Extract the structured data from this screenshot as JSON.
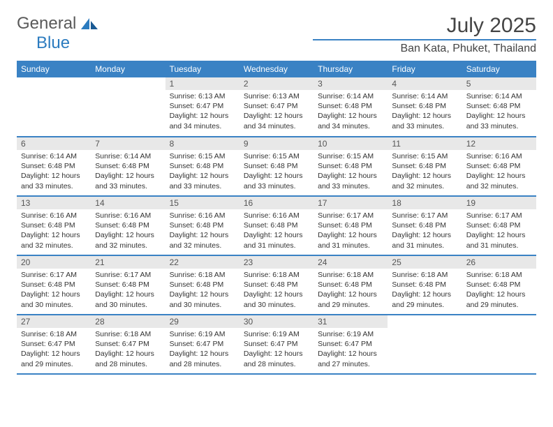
{
  "logo": {
    "part1": "General",
    "part2": "Blue"
  },
  "title": "July 2025",
  "location": "Ban Kata, Phuket, Thailand",
  "colors": {
    "headerBlue": "#3a82c4",
    "dayNumBg": "#e8e8e8",
    "textGray": "#5a5a5a"
  },
  "weekdays": [
    "Sunday",
    "Monday",
    "Tuesday",
    "Wednesday",
    "Thursday",
    "Friday",
    "Saturday"
  ],
  "firstWeekday": 2,
  "daysInMonth": 31,
  "days": {
    "1": {
      "sunrise": "6:13 AM",
      "sunset": "6:47 PM",
      "daylight": "12 hours and 34 minutes."
    },
    "2": {
      "sunrise": "6:13 AM",
      "sunset": "6:47 PM",
      "daylight": "12 hours and 34 minutes."
    },
    "3": {
      "sunrise": "6:14 AM",
      "sunset": "6:48 PM",
      "daylight": "12 hours and 34 minutes."
    },
    "4": {
      "sunrise": "6:14 AM",
      "sunset": "6:48 PM",
      "daylight": "12 hours and 33 minutes."
    },
    "5": {
      "sunrise": "6:14 AM",
      "sunset": "6:48 PM",
      "daylight": "12 hours and 33 minutes."
    },
    "6": {
      "sunrise": "6:14 AM",
      "sunset": "6:48 PM",
      "daylight": "12 hours and 33 minutes."
    },
    "7": {
      "sunrise": "6:14 AM",
      "sunset": "6:48 PM",
      "daylight": "12 hours and 33 minutes."
    },
    "8": {
      "sunrise": "6:15 AM",
      "sunset": "6:48 PM",
      "daylight": "12 hours and 33 minutes."
    },
    "9": {
      "sunrise": "6:15 AM",
      "sunset": "6:48 PM",
      "daylight": "12 hours and 33 minutes."
    },
    "10": {
      "sunrise": "6:15 AM",
      "sunset": "6:48 PM",
      "daylight": "12 hours and 33 minutes."
    },
    "11": {
      "sunrise": "6:15 AM",
      "sunset": "6:48 PM",
      "daylight": "12 hours and 32 minutes."
    },
    "12": {
      "sunrise": "6:16 AM",
      "sunset": "6:48 PM",
      "daylight": "12 hours and 32 minutes."
    },
    "13": {
      "sunrise": "6:16 AM",
      "sunset": "6:48 PM",
      "daylight": "12 hours and 32 minutes."
    },
    "14": {
      "sunrise": "6:16 AM",
      "sunset": "6:48 PM",
      "daylight": "12 hours and 32 minutes."
    },
    "15": {
      "sunrise": "6:16 AM",
      "sunset": "6:48 PM",
      "daylight": "12 hours and 32 minutes."
    },
    "16": {
      "sunrise": "6:16 AM",
      "sunset": "6:48 PM",
      "daylight": "12 hours and 31 minutes."
    },
    "17": {
      "sunrise": "6:17 AM",
      "sunset": "6:48 PM",
      "daylight": "12 hours and 31 minutes."
    },
    "18": {
      "sunrise": "6:17 AM",
      "sunset": "6:48 PM",
      "daylight": "12 hours and 31 minutes."
    },
    "19": {
      "sunrise": "6:17 AM",
      "sunset": "6:48 PM",
      "daylight": "12 hours and 31 minutes."
    },
    "20": {
      "sunrise": "6:17 AM",
      "sunset": "6:48 PM",
      "daylight": "12 hours and 30 minutes."
    },
    "21": {
      "sunrise": "6:17 AM",
      "sunset": "6:48 PM",
      "daylight": "12 hours and 30 minutes."
    },
    "22": {
      "sunrise": "6:18 AM",
      "sunset": "6:48 PM",
      "daylight": "12 hours and 30 minutes."
    },
    "23": {
      "sunrise": "6:18 AM",
      "sunset": "6:48 PM",
      "daylight": "12 hours and 30 minutes."
    },
    "24": {
      "sunrise": "6:18 AM",
      "sunset": "6:48 PM",
      "daylight": "12 hours and 29 minutes."
    },
    "25": {
      "sunrise": "6:18 AM",
      "sunset": "6:48 PM",
      "daylight": "12 hours and 29 minutes."
    },
    "26": {
      "sunrise": "6:18 AM",
      "sunset": "6:48 PM",
      "daylight": "12 hours and 29 minutes."
    },
    "27": {
      "sunrise": "6:18 AM",
      "sunset": "6:47 PM",
      "daylight": "12 hours and 29 minutes."
    },
    "28": {
      "sunrise": "6:18 AM",
      "sunset": "6:47 PM",
      "daylight": "12 hours and 28 minutes."
    },
    "29": {
      "sunrise": "6:19 AM",
      "sunset": "6:47 PM",
      "daylight": "12 hours and 28 minutes."
    },
    "30": {
      "sunrise": "6:19 AM",
      "sunset": "6:47 PM",
      "daylight": "12 hours and 28 minutes."
    },
    "31": {
      "sunrise": "6:19 AM",
      "sunset": "6:47 PM",
      "daylight": "12 hours and 27 minutes."
    }
  },
  "labels": {
    "sunrise": "Sunrise:",
    "sunset": "Sunset:",
    "daylight": "Daylight:"
  }
}
